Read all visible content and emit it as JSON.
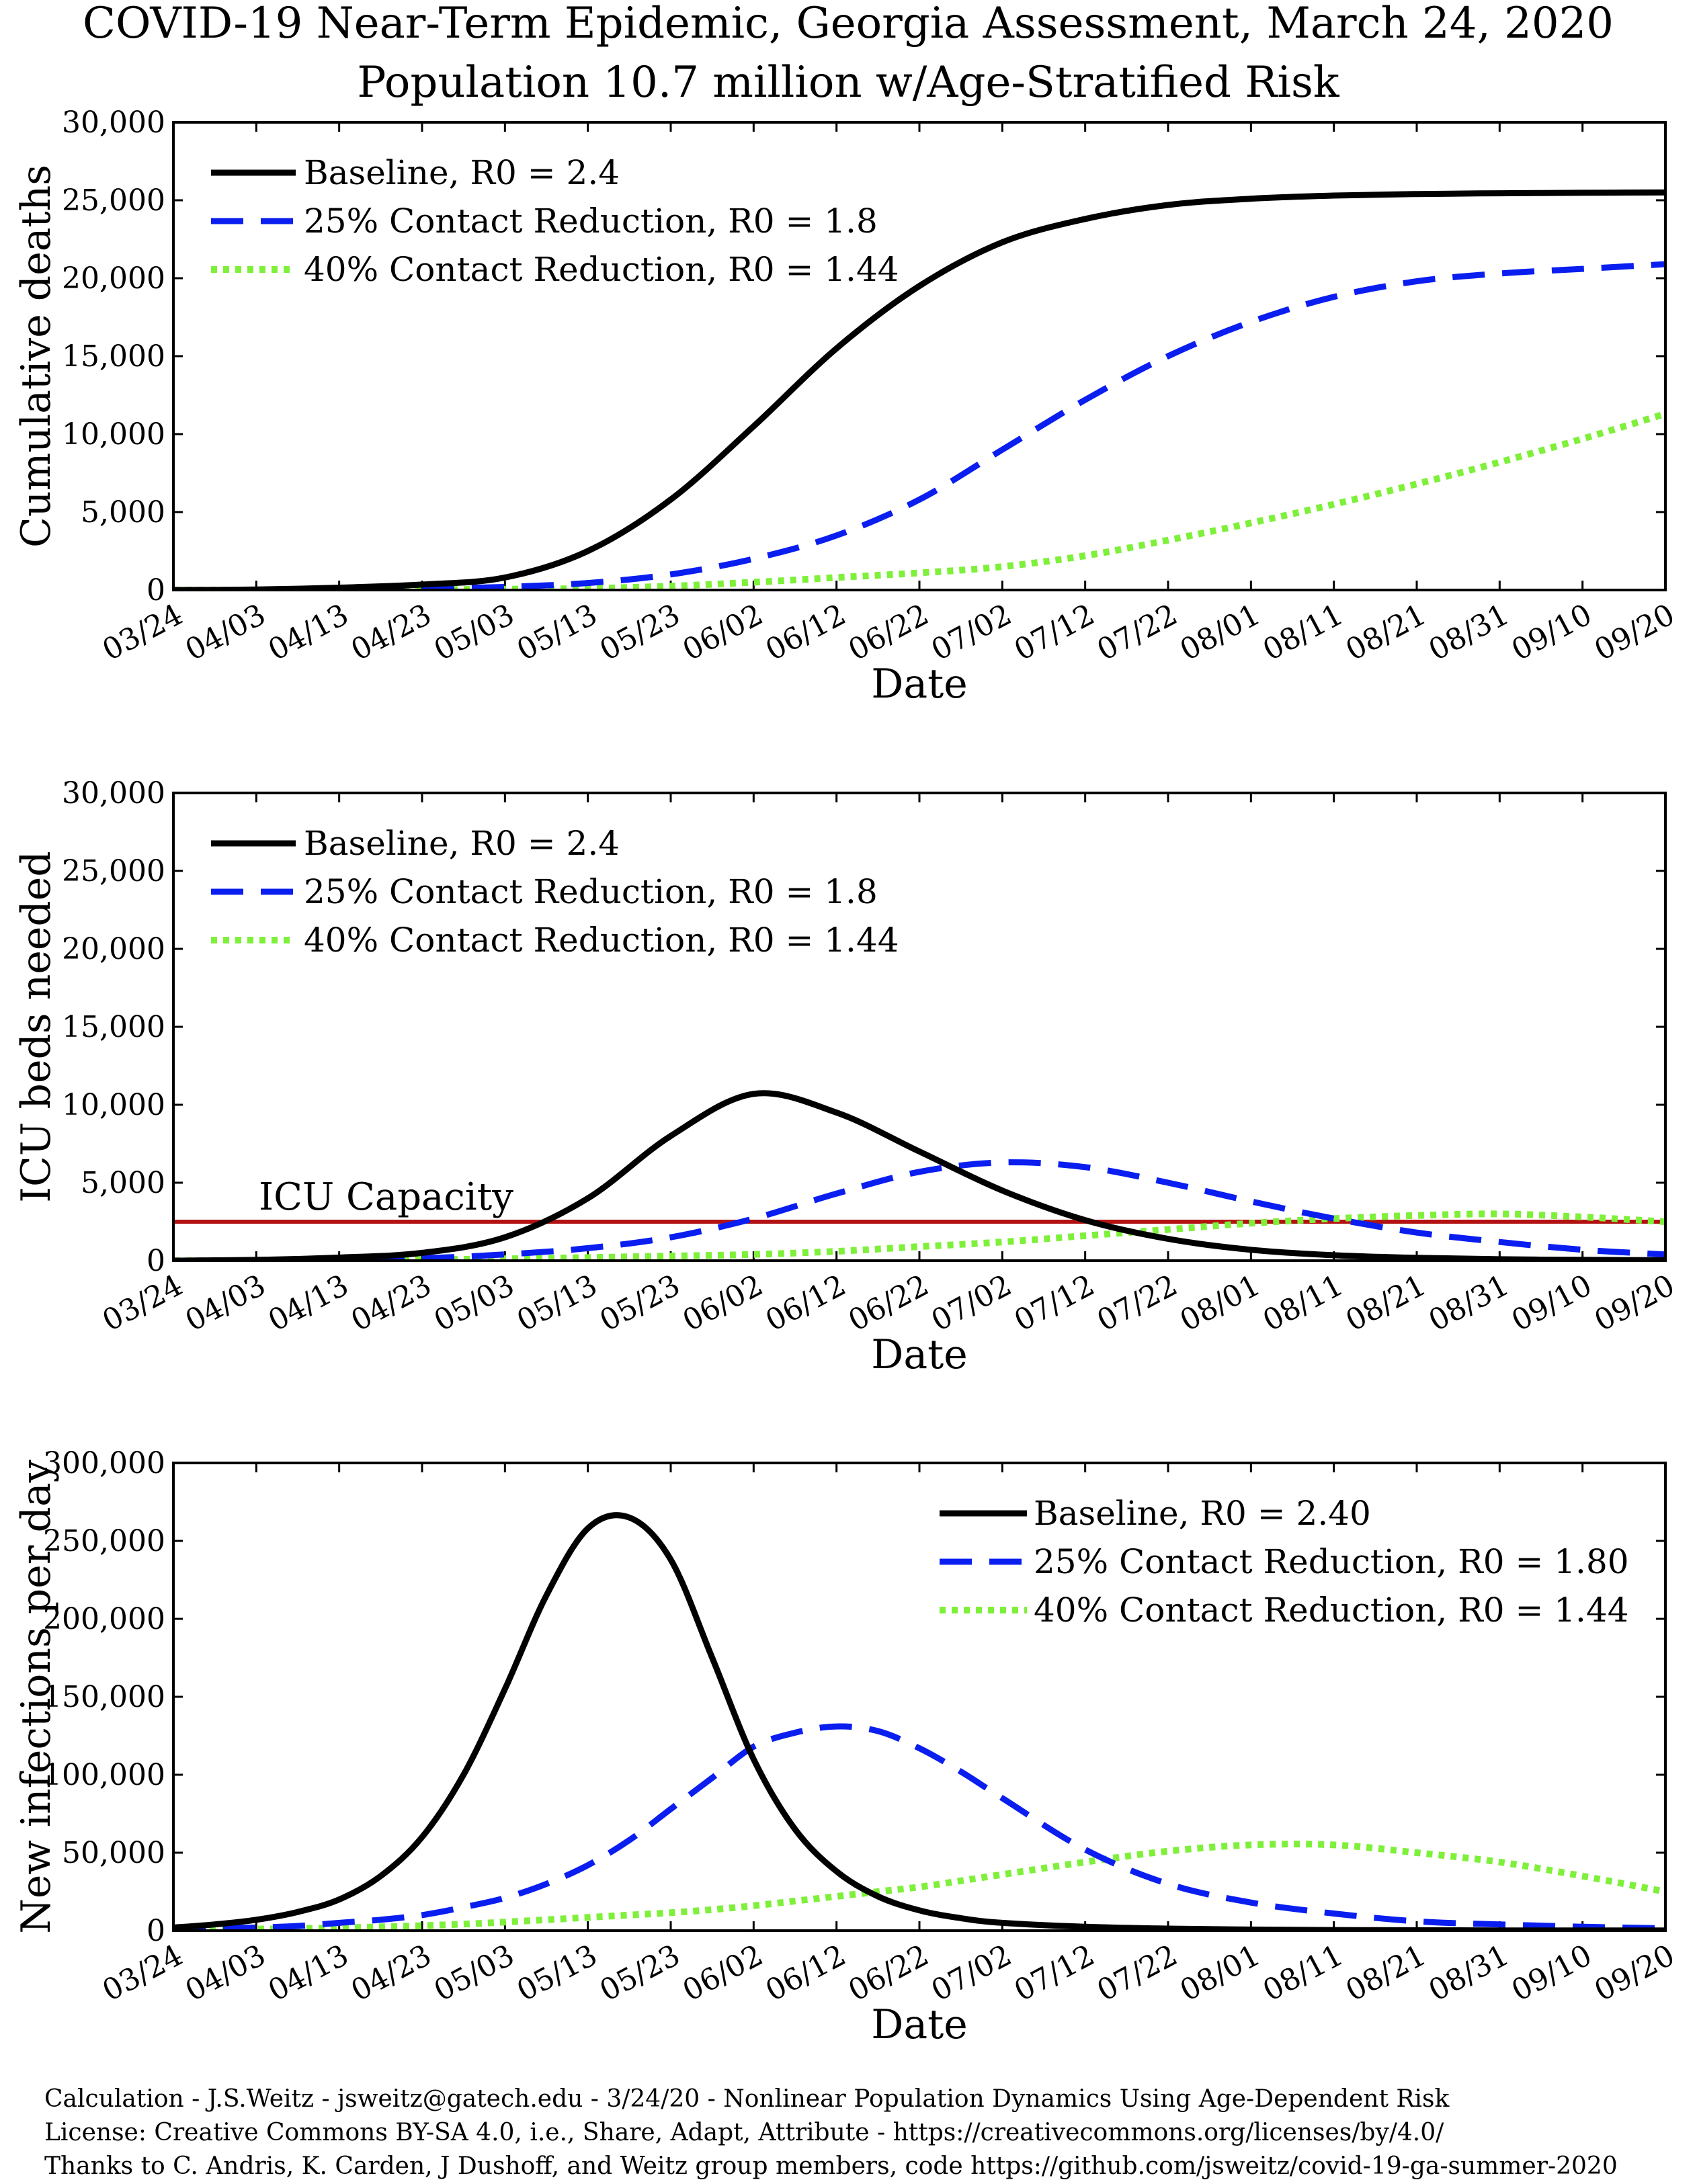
{
  "title": {
    "line1": "COVID-19 Near-Term Epidemic, Georgia Assessment, March 24, 2020",
    "line2": "Population 10.7 million w/Age-Stratified Risk"
  },
  "colors": {
    "baseline": "#000000",
    "reduction25": "#0a1ef0",
    "reduction40": "#7ef03a",
    "capacity": "#b31212"
  },
  "chart_data": [
    {
      "type": "line",
      "xlabel": "Date",
      "ylabel": "Cumulative deaths",
      "ylim": [
        0,
        30000
      ],
      "yticks": [
        "0",
        "5,000",
        "10,000",
        "15,000",
        "20,000",
        "25,000",
        "30,000"
      ],
      "xticks": [
        "03/24",
        "04/03",
        "04/13",
        "04/23",
        "05/03",
        "05/13",
        "05/23",
        "06/02",
        "06/12",
        "06/22",
        "07/02",
        "07/12",
        "07/22",
        "08/01",
        "08/11",
        "08/21",
        "08/31",
        "09/10",
        "09/20"
      ],
      "legend_position": "top-left",
      "legend": [
        "Baseline, R0 = 2.4",
        "25% Contact Reduction, R0 = 1.8",
        "40% Contact Reduction, R0 = 1.44"
      ],
      "x": [
        "03/24",
        "04/03",
        "04/13",
        "04/23",
        "05/03",
        "05/13",
        "05/23",
        "06/02",
        "06/12",
        "06/22",
        "07/02",
        "07/12",
        "07/22",
        "08/01",
        "08/11",
        "08/21",
        "08/31",
        "09/10",
        "09/20"
      ],
      "series": [
        {
          "name": "Baseline, R0 = 2.4",
          "style": "solid",
          "values": [
            0,
            30,
            150,
            350,
            800,
            2500,
            5800,
            10500,
            15500,
            19500,
            22300,
            23800,
            24700,
            25100,
            25300,
            25400,
            25450,
            25480,
            25500
          ]
        },
        {
          "name": "25% Contact Reduction, R0 = 1.8",
          "style": "dashed",
          "values": [
            0,
            5,
            20,
            80,
            200,
            450,
            1000,
            2000,
            3500,
            5800,
            9000,
            12200,
            15000,
            17200,
            18800,
            19800,
            20300,
            20600,
            20900
          ]
        },
        {
          "name": "40% Contact Reduction, R0 = 1.44",
          "style": "dotted",
          "values": [
            0,
            2,
            5,
            20,
            50,
            100,
            250,
            500,
            800,
            1100,
            1500,
            2200,
            3200,
            4300,
            5500,
            6800,
            8200,
            9700,
            11300
          ]
        }
      ]
    },
    {
      "type": "line",
      "xlabel": "Date",
      "ylabel": "ICU beds needed",
      "ylim": [
        0,
        30000
      ],
      "yticks": [
        "0",
        "5,000",
        "10,000",
        "15,000",
        "20,000",
        "25,000",
        "30,000"
      ],
      "xticks": [
        "03/24",
        "04/03",
        "04/13",
        "04/23",
        "05/03",
        "05/13",
        "05/23",
        "06/02",
        "06/12",
        "06/22",
        "07/02",
        "07/12",
        "07/22",
        "08/01",
        "08/11",
        "08/21",
        "08/31",
        "09/10",
        "09/20"
      ],
      "legend_position": "top-left",
      "legend": [
        "Baseline, R0 = 2.4",
        "25% Contact Reduction, R0 = 1.8",
        "40% Contact Reduction, R0 = 1.44"
      ],
      "annotation": "ICU Capacity",
      "capacity": 2500,
      "x": [
        "03/24",
        "04/03",
        "04/13",
        "04/23",
        "05/03",
        "05/13",
        "05/23",
        "06/02",
        "06/12",
        "06/22",
        "07/02",
        "07/12",
        "07/22",
        "08/01",
        "08/11",
        "08/21",
        "08/31",
        "09/10",
        "09/20"
      ],
      "series": [
        {
          "name": "Baseline, R0 = 2.4",
          "style": "solid",
          "values": [
            0,
            50,
            200,
            500,
            1500,
            4000,
            8000,
            10700,
            9500,
            7000,
            4500,
            2600,
            1400,
            700,
            350,
            180,
            90,
            50,
            30
          ]
        },
        {
          "name": "25% Contact Reduction, R0 = 1.8",
          "style": "dashed",
          "values": [
            0,
            20,
            60,
            150,
            400,
            800,
            1500,
            2700,
            4300,
            5700,
            6300,
            6000,
            5000,
            3800,
            2700,
            1800,
            1200,
            700,
            400
          ]
        },
        {
          "name": "40% Contact Reduction, R0 = 1.44",
          "style": "dotted",
          "values": [
            0,
            10,
            30,
            60,
            120,
            200,
            300,
            400,
            600,
            900,
            1200,
            1600,
            2000,
            2400,
            2700,
            2900,
            3000,
            2800,
            2500
          ]
        }
      ]
    },
    {
      "type": "line",
      "xlabel": "Date",
      "ylabel": "New infections per day",
      "ylim": [
        0,
        300000
      ],
      "yticks": [
        "0",
        "50,000",
        "100,000",
        "150,000",
        "200,000",
        "250,000",
        "300,000"
      ],
      "xticks": [
        "03/24",
        "04/03",
        "04/13",
        "04/23",
        "05/03",
        "05/13",
        "05/23",
        "06/02",
        "06/12",
        "06/22",
        "07/02",
        "07/12",
        "07/22",
        "08/01",
        "08/11",
        "08/21",
        "08/31",
        "09/10",
        "09/20"
      ],
      "legend_position": "top-right",
      "legend": [
        "Baseline, R0 = 2.40",
        "25% Contact Reduction, R0 = 1.80",
        "40% Contact Reduction, R0 = 1.44"
      ],
      "x": [
        "03/24",
        "03/29",
        "04/03",
        "04/08",
        "04/13",
        "04/18",
        "04/23",
        "04/28",
        "05/03",
        "05/08",
        "05/13",
        "05/18",
        "05/23",
        "05/28",
        "06/02",
        "06/07",
        "06/12",
        "06/17",
        "06/22",
        "06/27",
        "07/02",
        "07/12",
        "07/22",
        "08/01",
        "08/11",
        "08/21",
        "08/31",
        "09/10",
        "09/20"
      ],
      "series": [
        {
          "name": "Baseline, R0 = 2.40",
          "style": "solid",
          "values": [
            2000,
            4000,
            7000,
            12000,
            20000,
            35000,
            60000,
            100000,
            155000,
            215000,
            258000,
            265000,
            238000,
            175000,
            110000,
            65000,
            38000,
            22000,
            13000,
            8000,
            5000,
            2500,
            1300,
            700,
            400,
            250,
            150,
            100,
            80
          ]
        },
        {
          "name": "25% Contact Reduction, R0 = 1.80",
          "style": "dashed",
          "values": [
            1000,
            1500,
            2000,
            3000,
            5000,
            7000,
            10000,
            15000,
            21000,
            30000,
            42000,
            58000,
            78000,
            98000,
            118000,
            127000,
            131000,
            128000,
            117000,
            102000,
            85000,
            52000,
            30000,
            18000,
            11000,
            6000,
            4000,
            2500,
            1500
          ]
        },
        {
          "name": "40% Contact Reduction, R0 = 1.44",
          "style": "dotted",
          "values": [
            500,
            700,
            1000,
            1300,
            1800,
            2400,
            3200,
            4200,
            5500,
            7000,
            8500,
            10000,
            11500,
            13500,
            16000,
            19000,
            22000,
            25000,
            28000,
            32000,
            36000,
            44000,
            51000,
            55000,
            55000,
            50000,
            44000,
            35000,
            25000
          ]
        }
      ]
    }
  ],
  "footer": {
    "line1": "Calculation - J.S.Weitz - jsweitz@gatech.edu - 3/24/20 - Nonlinear Population Dynamics Using Age-Dependent Risk",
    "line2": "License: Creative Commons BY-SA 4.0, i.e., Share, Adapt, Attribute - https://creativecommons.org/licenses/by/4.0/",
    "line3": "Thanks to C. Andris, K. Carden, J Dushoff, and Weitz group members, code https://github.com/jsweitz/covid-19-ga-summer-2020"
  }
}
